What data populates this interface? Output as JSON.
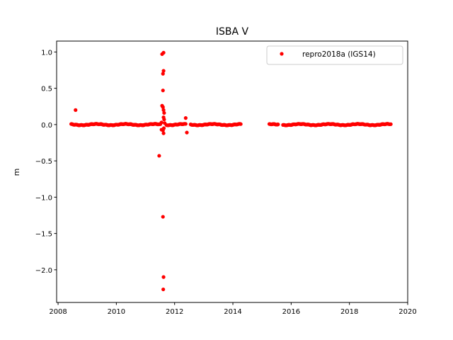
{
  "chart_data": {
    "type": "scatter",
    "title": "ISBA V",
    "xlabel": "",
    "ylabel": "m",
    "xlim": [
      2007.95,
      2020.0
    ],
    "ylim": [
      -2.45,
      1.15
    ],
    "x_ticks": [
      2008,
      2010,
      2012,
      2014,
      2016,
      2018,
      2020
    ],
    "y_ticks": [
      1.0,
      0.5,
      0.0,
      -0.5,
      -1.0,
      -1.5,
      -2.0
    ],
    "y_tick_labels": [
      "1.0",
      "0.5",
      "0.0",
      "−0.5",
      "−1.0",
      "−1.5",
      "−2.0"
    ],
    "grid": false,
    "legend_position": "top-right",
    "series": [
      {
        "name": "repro2018a (IGS14)",
        "color": "#ff0000",
        "marker": "circle",
        "segments": [
          {
            "x_start": 2008.45,
            "x_end": 2011.52,
            "baseline": 0.0,
            "amplitude": 0.008
          },
          {
            "x_start": 2011.72,
            "x_end": 2012.38,
            "baseline": 0.0,
            "amplitude": 0.008
          },
          {
            "x_start": 2012.55,
            "x_end": 2014.28,
            "baseline": 0.0,
            "amplitude": 0.008
          },
          {
            "x_start": 2015.25,
            "x_end": 2015.55,
            "baseline": 0.0,
            "amplitude": 0.006
          },
          {
            "x_start": 2015.72,
            "x_end": 2019.42,
            "baseline": 0.0,
            "amplitude": 0.008
          }
        ],
        "outliers": [
          {
            "x": 2008.6,
            "y": 0.2
          },
          {
            "x": 2011.47,
            "y": -0.43
          },
          {
            "x": 2011.57,
            "y": 0.97
          },
          {
            "x": 2011.62,
            "y": 0.99
          },
          {
            "x": 2011.62,
            "y": 0.74
          },
          {
            "x": 2011.6,
            "y": 0.7
          },
          {
            "x": 2011.6,
            "y": 0.47
          },
          {
            "x": 2011.57,
            "y": 0.26
          },
          {
            "x": 2011.6,
            "y": 0.24
          },
          {
            "x": 2011.62,
            "y": 0.2
          },
          {
            "x": 2011.64,
            "y": 0.16
          },
          {
            "x": 2011.62,
            "y": 0.1
          },
          {
            "x": 2011.64,
            "y": 0.07
          },
          {
            "x": 2011.55,
            "y": 0.03
          },
          {
            "x": 2011.66,
            "y": 0.02
          },
          {
            "x": 2011.55,
            "y": -0.07
          },
          {
            "x": 2011.6,
            "y": -0.08
          },
          {
            "x": 2011.63,
            "y": -0.05
          },
          {
            "x": 2011.62,
            "y": -0.12
          },
          {
            "x": 2011.6,
            "y": -1.27
          },
          {
            "x": 2011.62,
            "y": -2.1
          },
          {
            "x": 2011.61,
            "y": -2.27
          },
          {
            "x": 2012.38,
            "y": 0.09
          },
          {
            "x": 2012.42,
            "y": -0.11
          }
        ]
      }
    ]
  }
}
